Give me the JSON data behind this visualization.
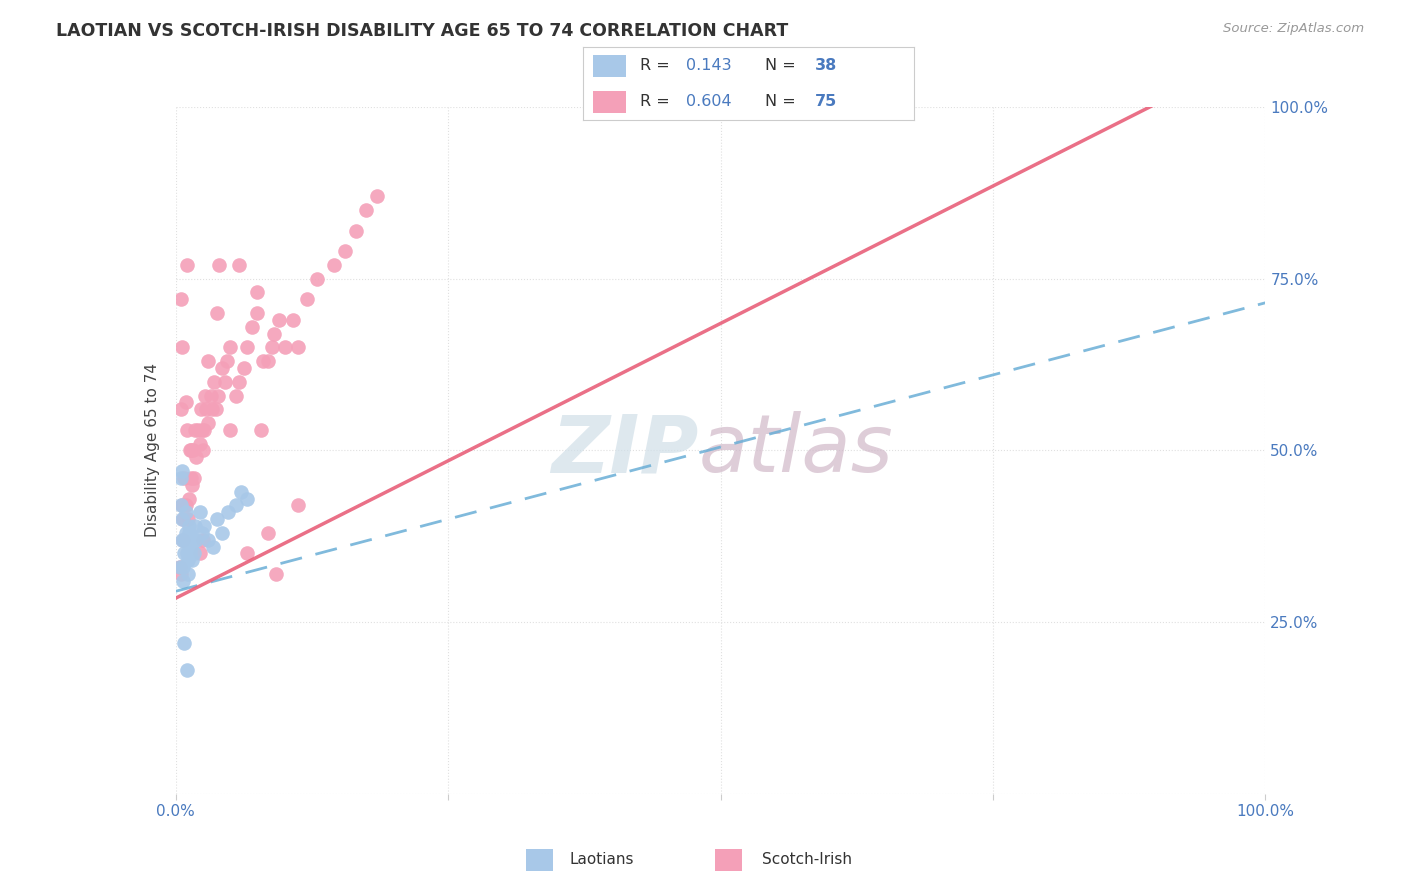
{
  "title": "LAOTIAN VS SCOTCH-IRISH DISABILITY AGE 65 TO 74 CORRELATION CHART",
  "source_text": "Source: ZipAtlas.com",
  "ylabel": "Disability Age 65 to 74",
  "background_color": "#ffffff",
  "laotian_color": "#a8c8e8",
  "scotch_color": "#f4a0b8",
  "trendline_laotian_color": "#6aaed6",
  "trendline_scotch_color": "#e8607a",
  "legend_r_laotian": "0.143",
  "legend_n_laotian": "38",
  "legend_r_scotch": "0.604",
  "legend_n_scotch": "75",
  "label_color": "#4a7abf",
  "grid_color": "#e0e0e0",
  "watermark_zip_color": "#d0dfe8",
  "watermark_atlas_color": "#d0b8c8",
  "laotian_points": [
    [
      0.004,
      0.33
    ],
    [
      0.005,
      0.42
    ],
    [
      0.005,
      0.46
    ],
    [
      0.006,
      0.47
    ],
    [
      0.006,
      0.4
    ],
    [
      0.006,
      0.37
    ],
    [
      0.007,
      0.33
    ],
    [
      0.007,
      0.31
    ],
    [
      0.008,
      0.35
    ],
    [
      0.008,
      0.37
    ],
    [
      0.009,
      0.38
    ],
    [
      0.009,
      0.41
    ],
    [
      0.01,
      0.37
    ],
    [
      0.01,
      0.35
    ],
    [
      0.011,
      0.34
    ],
    [
      0.011,
      0.32
    ],
    [
      0.012,
      0.38
    ],
    [
      0.012,
      0.39
    ],
    [
      0.013,
      0.35
    ],
    [
      0.014,
      0.36
    ],
    [
      0.015,
      0.34
    ],
    [
      0.016,
      0.37
    ],
    [
      0.017,
      0.35
    ],
    [
      0.018,
      0.39
    ],
    [
      0.019,
      0.37
    ],
    [
      0.022,
      0.41
    ],
    [
      0.024,
      0.38
    ],
    [
      0.026,
      0.39
    ],
    [
      0.03,
      0.37
    ],
    [
      0.034,
      0.36
    ],
    [
      0.038,
      0.4
    ],
    [
      0.042,
      0.38
    ],
    [
      0.048,
      0.41
    ],
    [
      0.055,
      0.42
    ],
    [
      0.06,
      0.44
    ],
    [
      0.065,
      0.43
    ],
    [
      0.008,
      0.22
    ],
    [
      0.01,
      0.18
    ]
  ],
  "scotch_points": [
    [
      0.004,
      0.33
    ],
    [
      0.005,
      0.32
    ],
    [
      0.005,
      0.56
    ],
    [
      0.006,
      0.42
    ],
    [
      0.007,
      0.4
    ],
    [
      0.007,
      0.37
    ],
    [
      0.008,
      0.46
    ],
    [
      0.009,
      0.42
    ],
    [
      0.009,
      0.57
    ],
    [
      0.01,
      0.53
    ],
    [
      0.011,
      0.4
    ],
    [
      0.012,
      0.43
    ],
    [
      0.013,
      0.5
    ],
    [
      0.014,
      0.46
    ],
    [
      0.014,
      0.5
    ],
    [
      0.015,
      0.45
    ],
    [
      0.016,
      0.5
    ],
    [
      0.017,
      0.46
    ],
    [
      0.018,
      0.53
    ],
    [
      0.019,
      0.49
    ],
    [
      0.02,
      0.53
    ],
    [
      0.022,
      0.51
    ],
    [
      0.023,
      0.56
    ],
    [
      0.024,
      0.53
    ],
    [
      0.025,
      0.5
    ],
    [
      0.026,
      0.53
    ],
    [
      0.027,
      0.58
    ],
    [
      0.028,
      0.56
    ],
    [
      0.03,
      0.54
    ],
    [
      0.032,
      0.58
    ],
    [
      0.033,
      0.56
    ],
    [
      0.035,
      0.6
    ],
    [
      0.037,
      0.56
    ],
    [
      0.039,
      0.58
    ],
    [
      0.042,
      0.62
    ],
    [
      0.045,
      0.6
    ],
    [
      0.047,
      0.63
    ],
    [
      0.05,
      0.65
    ],
    [
      0.055,
      0.58
    ],
    [
      0.058,
      0.6
    ],
    [
      0.063,
      0.62
    ],
    [
      0.065,
      0.65
    ],
    [
      0.07,
      0.68
    ],
    [
      0.075,
      0.7
    ],
    [
      0.078,
      0.53
    ],
    [
      0.08,
      0.63
    ],
    [
      0.085,
      0.63
    ],
    [
      0.088,
      0.65
    ],
    [
      0.09,
      0.67
    ],
    [
      0.095,
      0.69
    ],
    [
      0.1,
      0.65
    ],
    [
      0.108,
      0.69
    ],
    [
      0.112,
      0.65
    ],
    [
      0.12,
      0.72
    ],
    [
      0.13,
      0.75
    ],
    [
      0.145,
      0.77
    ],
    [
      0.155,
      0.79
    ],
    [
      0.165,
      0.82
    ],
    [
      0.175,
      0.85
    ],
    [
      0.185,
      0.87
    ],
    [
      0.005,
      0.72
    ],
    [
      0.006,
      0.65
    ],
    [
      0.01,
      0.77
    ],
    [
      0.04,
      0.77
    ],
    [
      0.058,
      0.77
    ],
    [
      0.075,
      0.73
    ],
    [
      0.085,
      0.38
    ],
    [
      0.092,
      0.32
    ],
    [
      0.038,
      0.7
    ],
    [
      0.03,
      0.63
    ],
    [
      0.022,
      0.35
    ],
    [
      0.025,
      0.37
    ],
    [
      0.112,
      0.42
    ],
    [
      0.065,
      0.35
    ],
    [
      0.05,
      0.53
    ]
  ],
  "trendline_scotch": [
    [
      0.0,
      0.285
    ],
    [
      1.0,
      1.085
    ]
  ],
  "trendline_laotian": [
    [
      0.0,
      0.295
    ],
    [
      1.0,
      0.715
    ]
  ]
}
